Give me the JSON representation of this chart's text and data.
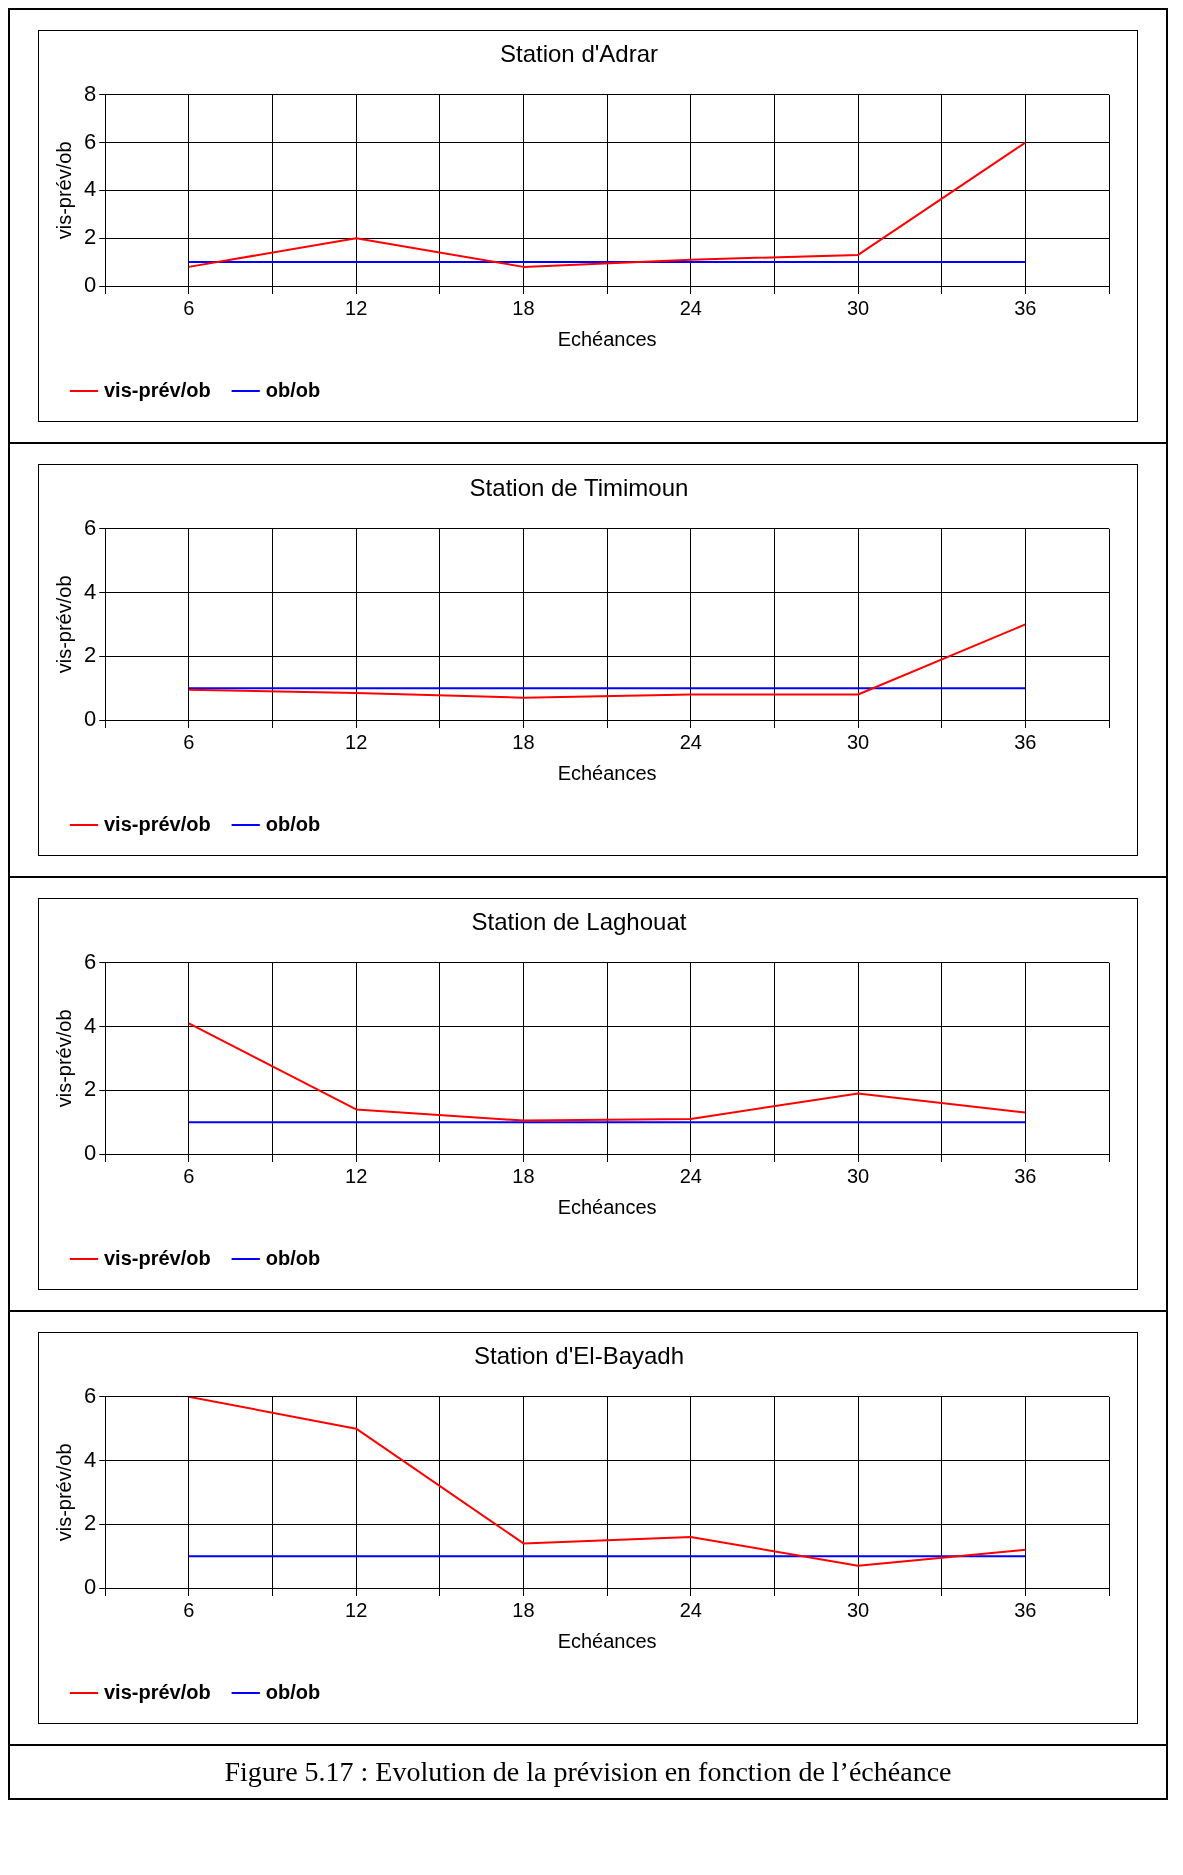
{
  "chart_data": [
    {
      "type": "line",
      "title": "Station d'Adrar",
      "xlabel": "Echéances",
      "ylabel": "vis-prév/ob",
      "x": [
        6,
        12,
        18,
        24,
        30,
        36
      ],
      "xlim": [
        3,
        39
      ],
      "xticks": [
        {
          "value": 3,
          "label": null
        },
        6,
        {
          "value": 9,
          "label": null
        },
        12,
        {
          "value": 15,
          "label": null
        },
        18,
        {
          "value": 21,
          "label": null
        },
        24,
        {
          "value": 27,
          "label": null
        },
        30,
        {
          "value": 33,
          "label": null
        },
        36,
        {
          "value": 39,
          "label": null
        }
      ],
      "ylim": [
        0,
        8
      ],
      "yticks": [
        0,
        2,
        4,
        6,
        8
      ],
      "grid": true,
      "legend": "bottom left",
      "marker": "none",
      "series": [
        {
          "name": "vis-prév/ob",
          "color": "#ff0000",
          "values": [
            0.8,
            2,
            0.8,
            1.1,
            1.3,
            6
          ]
        },
        {
          "name": "ob/ob",
          "color": "#0000ff",
          "values": [
            1,
            1,
            1,
            1,
            1,
            1
          ]
        }
      ]
    },
    {
      "type": "line",
      "title": "Station de Timimoun",
      "xlabel": "Echéances",
      "ylabel": "vis-prév/ob",
      "x": [
        6,
        12,
        18,
        24,
        30,
        36
      ],
      "xlim": [
        3,
        39
      ],
      "xticks": [
        {
          "value": 3,
          "label": null
        },
        6,
        {
          "value": 9,
          "label": null
        },
        12,
        {
          "value": 15,
          "label": null
        },
        18,
        {
          "value": 21,
          "label": null
        },
        24,
        {
          "value": 27,
          "label": null
        },
        30,
        {
          "value": 33,
          "label": null
        },
        36,
        {
          "value": 39,
          "label": null
        }
      ],
      "ylim": [
        0,
        6
      ],
      "yticks": [
        0,
        2,
        4,
        6
      ],
      "grid": true,
      "legend": "bottom left",
      "marker": "none",
      "series": [
        {
          "name": "vis-prév/ob",
          "color": "#ff0000",
          "values": [
            0.95,
            0.85,
            0.7,
            0.8,
            0.8,
            3
          ]
        },
        {
          "name": "ob/ob",
          "color": "#0000ff",
          "values": [
            1,
            1,
            1,
            1,
            1,
            1
          ]
        }
      ]
    },
    {
      "type": "line",
      "title": "Station de Laghouat",
      "xlabel": "Echéances",
      "ylabel": "vis-prév/ob",
      "x": [
        6,
        12,
        18,
        24,
        30,
        36
      ],
      "xlim": [
        3,
        39
      ],
      "xticks": [
        {
          "value": 3,
          "label": null
        },
        6,
        {
          "value": 9,
          "label": null
        },
        12,
        {
          "value": 15,
          "label": null
        },
        18,
        {
          "value": 21,
          "label": null
        },
        24,
        {
          "value": 27,
          "label": null
        },
        30,
        {
          "value": 33,
          "label": null
        },
        36,
        {
          "value": 39,
          "label": null
        }
      ],
      "ylim": [
        0,
        6
      ],
      "yticks": [
        0,
        2,
        4,
        6
      ],
      "grid": true,
      "legend": "bottom left",
      "marker": "none",
      "series": [
        {
          "name": "vis-prév/ob",
          "color": "#ff0000",
          "values": [
            4.1,
            1.4,
            1.05,
            1.1,
            1.9,
            1.3
          ]
        },
        {
          "name": "ob/ob",
          "color": "#0000ff",
          "values": [
            1,
            1,
            1,
            1,
            1,
            1
          ]
        }
      ]
    },
    {
      "type": "line",
      "title": "Station d'El-Bayadh",
      "xlabel": "Echéances",
      "ylabel": "vis-prév/ob",
      "x": [
        6,
        12,
        18,
        24,
        30,
        36
      ],
      "xlim": [
        3,
        39
      ],
      "xticks": [
        {
          "value": 3,
          "label": null
        },
        6,
        {
          "value": 9,
          "label": null
        },
        12,
        {
          "value": 15,
          "label": null
        },
        18,
        {
          "value": 21,
          "label": null
        },
        24,
        {
          "value": 27,
          "label": null
        },
        30,
        {
          "value": 33,
          "label": null
        },
        36,
        {
          "value": 39,
          "label": null
        }
      ],
      "ylim": [
        0,
        6
      ],
      "yticks": [
        0,
        2,
        4,
        6
      ],
      "grid": true,
      "legend": "bottom left",
      "marker": "none",
      "annotations": [
        "Figure 5.17 : Evolution de la prévision en fonction de l’échéance"
      ],
      "series": [
        {
          "name": "vis-prév/ob",
          "color": "#ff0000",
          "values": [
            6,
            5,
            1.4,
            1.6,
            0.7,
            1.2
          ]
        },
        {
          "name": "ob/ob",
          "color": "#0000ff",
          "values": [
            1,
            1,
            1,
            1,
            1,
            1
          ]
        }
      ]
    }
  ]
}
